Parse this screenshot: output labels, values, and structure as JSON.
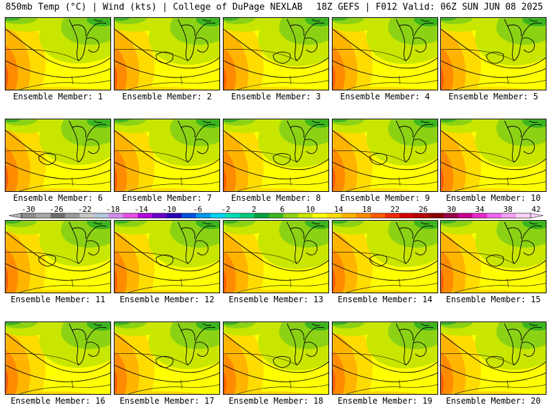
{
  "header": {
    "left": "850mb Temp (°C) | Wind (kts) | College of DuPage NEXLAB",
    "right": "18Z GEFS | F012 Valid: 06Z SUN JUN 08 2025"
  },
  "members": [
    "Ensemble Member: 1",
    "Ensemble Member: 2",
    "Ensemble Member: 3",
    "Ensemble Member: 4",
    "Ensemble Member: 5",
    "Ensemble Member: 6",
    "Ensemble Member: 7",
    "Ensemble Member: 8",
    "Ensemble Member: 9",
    "Ensemble Member: 10",
    "Ensemble Member: 11",
    "Ensemble Member: 12",
    "Ensemble Member: 13",
    "Ensemble Member: 14",
    "Ensemble Member: 15",
    "Ensemble Member: 16",
    "Ensemble Member: 17",
    "Ensemble Member: 18",
    "Ensemble Member: 19",
    "Ensemble Member: 20"
  ],
  "colorbar": {
    "labels": [
      "-30",
      "-26",
      "-22",
      "-18",
      "-14",
      "-10",
      "-6",
      "-2",
      "2",
      "6",
      "10",
      "14",
      "18",
      "22",
      "26",
      "30",
      "34",
      "38",
      "42"
    ],
    "colors": [
      "#8c8c8c",
      "#a8a8a8",
      "#6e6e6e",
      "#9a9a9a",
      "#c8c8c8",
      "#b4c8dc",
      "#d28cf0",
      "#e650e6",
      "#b400dc",
      "#6400c8",
      "#2800b4",
      "#0050dc",
      "#0096f0",
      "#00d2f0",
      "#00dcb4",
      "#00c878",
      "#00a03c",
      "#3cb41e",
      "#8cd214",
      "#c8e600",
      "#ffff00",
      "#ffdc00",
      "#ffb400",
      "#ff8c00",
      "#ff5a00",
      "#f02800",
      "#d20000",
      "#b40000",
      "#8c0000",
      "#960046",
      "#c8008c",
      "#e628c8",
      "#f064f0",
      "#f5a0f5",
      "#fad2fa"
    ]
  }
}
